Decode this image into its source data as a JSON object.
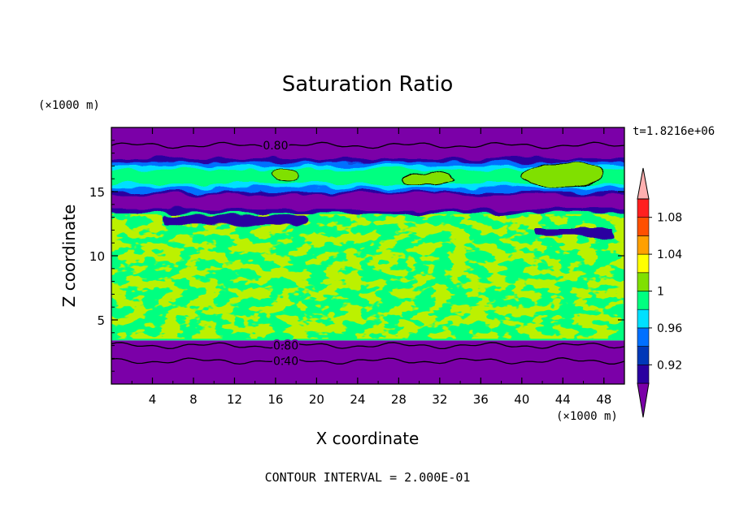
{
  "chart_data": {
    "type": "heatmap",
    "title": "Saturation Ratio",
    "xlabel": "X coordinate",
    "ylabel": "Z coordinate",
    "x_unit": "(×1000 m)",
    "y_unit": "(×1000 m)",
    "time_label": "t=1.8216e+06",
    "footer": "CONTOUR INTERVAL = 2.000E-01",
    "xlim": [
      0,
      50
    ],
    "ylim": [
      0,
      20
    ],
    "x_ticks": [
      "4",
      "8",
      "12",
      "16",
      "20",
      "24",
      "28",
      "32",
      "36",
      "40",
      "44",
      "48"
    ],
    "y_ticks": [
      "5",
      "10",
      "15"
    ],
    "contour_labels": [
      "0.80",
      "0.80",
      "0.40"
    ],
    "colorbar": {
      "labels": [
        "0.92",
        "0.96",
        "1",
        "1.04",
        "1.08"
      ],
      "levels": [
        0.92,
        0.94,
        0.96,
        0.98,
        1.0,
        1.02,
        1.04,
        1.06,
        1.08,
        1.1
      ],
      "colors": [
        "#7b00a8",
        "#2a00a0",
        "#0038b8",
        "#0070ff",
        "#00e0ff",
        "#00ff80",
        "#80e000",
        "#ffff00",
        "#ffa000",
        "#ff5000",
        "#ff2020",
        "#ffb0b0"
      ]
    },
    "regions": {
      "lower_bands": {
        "zlim": [
          0,
          3.4
        ],
        "value": 0.8
      },
      "mid_field": {
        "zlim": [
          3.4,
          13.5
        ],
        "value": 0.99
      },
      "upper_bands": {
        "zlim": [
          13.5,
          20
        ],
        "value": 0.94
      }
    }
  }
}
